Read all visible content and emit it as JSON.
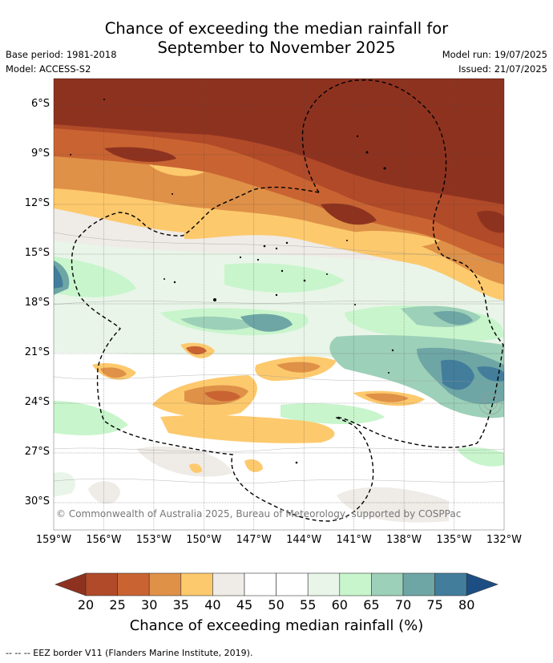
{
  "title_line1": "Chance of exceeding the median rainfall for",
  "title_line2": "September to November 2025",
  "base_period": "Base period: 1981-2018",
  "model": "Model: ACCESS-S2",
  "model_run": "Model run: 19/07/2025",
  "issued": "Issued: 21/07/2025",
  "lat_labels": [
    "6°S",
    "9°S",
    "12°S",
    "15°S",
    "18°S",
    "21°S",
    "24°S",
    "27°S",
    "30°S"
  ],
  "lon_labels": [
    "159°W",
    "156°W",
    "153°W",
    "150°W",
    "147°W",
    "144°W",
    "141°W",
    "138°W",
    "135°W",
    "132°W"
  ],
  "copyright": "© Commonwealth of Australia 2025, Bureau of Meteorology, supported by COSPPac",
  "colorbar": {
    "ticks": [
      "20",
      "25",
      "30",
      "35",
      "40",
      "45",
      "50",
      "55",
      "60",
      "65",
      "70",
      "75",
      "80"
    ],
    "colors": [
      "#8e3220",
      "#b04a28",
      "#c96432",
      "#df9148",
      "#fdc96d",
      "#efebe7",
      "#ffffff",
      "#ffffff",
      "#e9f5e8",
      "#c8f5cc",
      "#9dd0b8",
      "#6ea6a5",
      "#427d9c",
      "#1d4e83"
    ],
    "label": "Chance of exceeding median rainfall (%)"
  },
  "footnote": "--  --  -- EEZ border V11 (Flanders Marine Institute, 2019)."
}
